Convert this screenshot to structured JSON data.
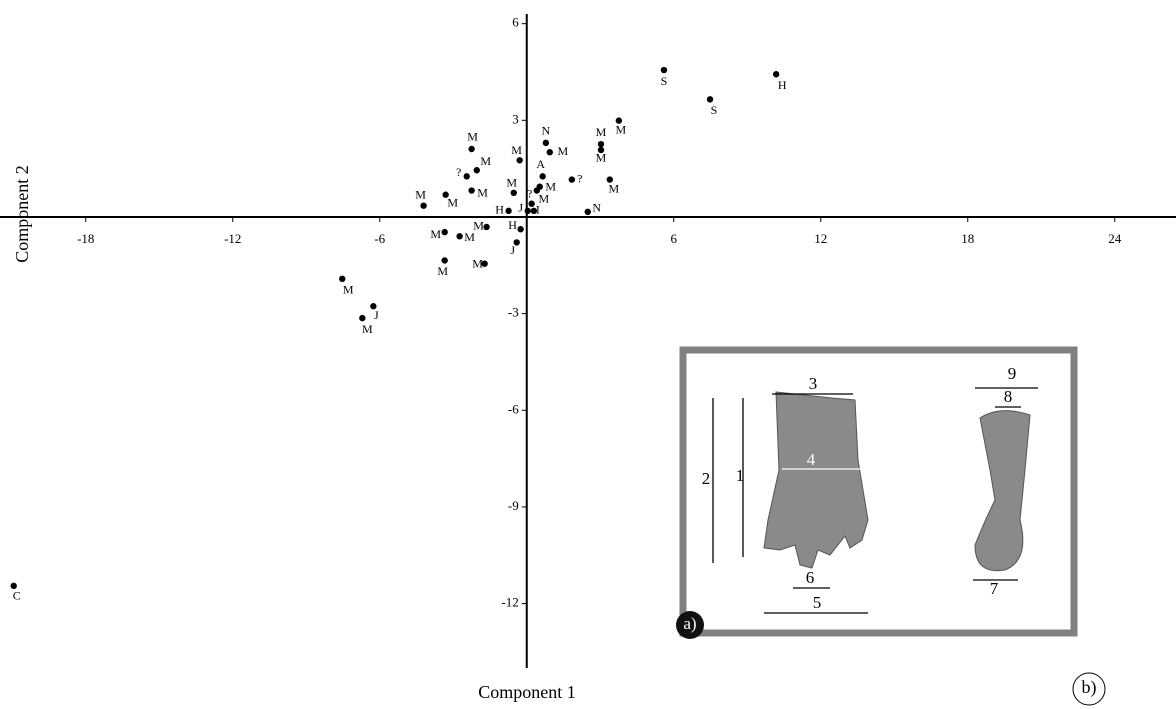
{
  "chart_data": {
    "type": "scatter",
    "x_label": "Component 1",
    "y_label": "Component 2",
    "xlim": [
      -21.5,
      26.5
    ],
    "ylim": [
      -14.0,
      6.3
    ],
    "xticks": [
      -18,
      -12,
      -6,
      6,
      12,
      18,
      24
    ],
    "yticks": [
      6,
      3,
      -3,
      -6,
      -9,
      -12
    ],
    "color": "#000000",
    "series": [
      {
        "x": [
          5.6,
          7.48,
          10.18,
          3.76,
          3.03,
          3.03,
          0.78,
          0.94,
          -0.29,
          -2.25,
          -2.04,
          -2.45,
          0.65,
          1.84,
          3.39,
          0.53,
          0.41,
          -0.53,
          -2.25,
          -3.31,
          -4.21,
          0.2,
          0.04,
          -0.74,
          2.49,
          -0.25,
          -1.64,
          -2.74,
          -3.35,
          -0.41,
          -3.35,
          -1.72,
          -7.53,
          -6.26,
          -6.71,
          -20.94,
          0.29
        ],
        "values": [
          4.56,
          3.65,
          4.43,
          2.99,
          2.26,
          2.08,
          2.3,
          2.01,
          1.76,
          2.11,
          1.45,
          1.26,
          1.26,
          1.16,
          1.16,
          0.94,
          0.82,
          0.75,
          0.82,
          0.69,
          0.35,
          0.41,
          0.19,
          0.19,
          0.16,
          -0.38,
          -0.31,
          -0.6,
          -0.47,
          -0.79,
          -1.35,
          -1.45,
          -1.92,
          -2.77,
          -3.14,
          -11.45,
          0.19
        ],
        "point_labels": [
          "S",
          "S",
          "H",
          "M",
          "M",
          "M",
          "N",
          "M",
          "M",
          "M",
          "M",
          "?",
          "A",
          "?",
          "M",
          "M",
          "M",
          "M",
          "M",
          "M",
          "M",
          "?",
          "J",
          "H",
          "N",
          "H",
          "M",
          "M",
          "M",
          "J",
          "M",
          "M",
          "M",
          "J",
          "M",
          "C",
          "I"
        ]
      }
    ]
  },
  "inset": {
    "measures": [
      "1",
      "2",
      "3",
      "4",
      "5",
      "6",
      "7",
      "8",
      "9"
    ],
    "panel_label": "a)"
  },
  "panel_label": "b)"
}
